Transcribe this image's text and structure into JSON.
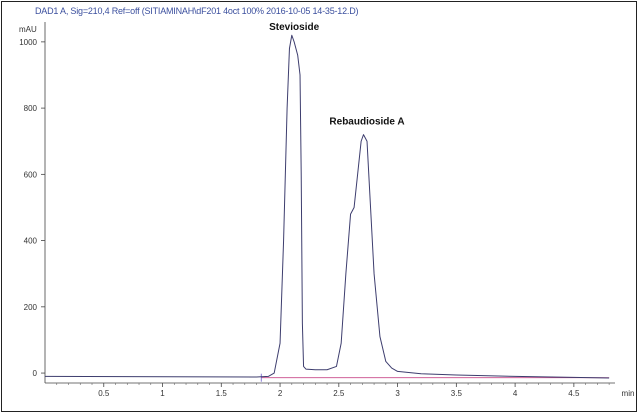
{
  "header": "DAD1 A, Sig=210,4 Ref=off (SITIAMINAH\\dF201 4oct 100% 2016-10-05 14-35-12.D)",
  "chart_data": {
    "type": "line",
    "ylabel": "mAU",
    "xlabel": "min",
    "xlim": [
      0,
      4.85
    ],
    "ylim": [
      -30,
      1060
    ],
    "xticks": [
      0.5,
      1,
      1.5,
      2,
      2.5,
      3,
      3.5,
      4,
      4.5
    ],
    "yticks": [
      0,
      200,
      400,
      600,
      800,
      1000
    ],
    "grid": false,
    "annotations": [
      {
        "text": "Stevioside",
        "x": 2.12,
        "y": 1030
      },
      {
        "text": "Rebaudioside A",
        "x": 2.74,
        "y": 745
      }
    ],
    "baseline": {
      "x": [
        1.84,
        4.8
      ],
      "y": [
        -14,
        -14
      ]
    },
    "series": [
      {
        "x": [
          0,
          1.8,
          1.9,
          1.95,
          2.0,
          2.03,
          2.06,
          2.08,
          2.1,
          2.12,
          2.15,
          2.17,
          2.18,
          2.19,
          2.2,
          2.22,
          2.3,
          2.4,
          2.48,
          2.52,
          2.56,
          2.6,
          2.63,
          2.66,
          2.69,
          2.71,
          2.74,
          2.77,
          2.8,
          2.85,
          2.9,
          2.95,
          3.0,
          3.2,
          3.5,
          4.0,
          4.5,
          4.8
        ],
        "y": [
          -10,
          -12,
          -10,
          0,
          90,
          400,
          800,
          980,
          1020,
          1000,
          960,
          900,
          600,
          150,
          20,
          12,
          10,
          10,
          20,
          90,
          300,
          480,
          500,
          600,
          700,
          720,
          700,
          500,
          300,
          110,
          35,
          15,
          5,
          -2,
          -6,
          -10,
          -13,
          -15
        ]
      }
    ]
  }
}
